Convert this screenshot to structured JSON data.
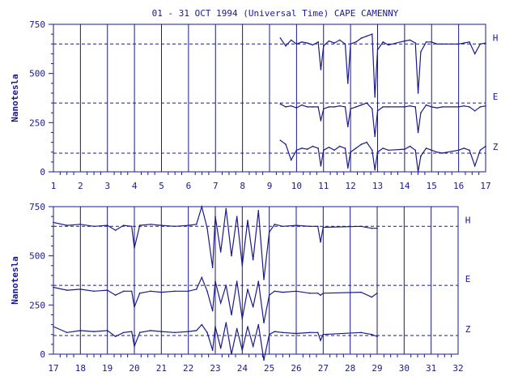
{
  "chart_data": [
    {
      "type": "line",
      "title": "01 - 31 OCT 1994 (Universal Time) CAPE CAMENNY",
      "ylabel": "Nanotesla",
      "xlim": [
        1,
        17
      ],
      "ylim": [
        0,
        750
      ],
      "y_ticks": [
        0,
        250,
        500,
        750
      ],
      "x_ticks": [
        1,
        2,
        3,
        4,
        5,
        6,
        7,
        8,
        9,
        10,
        11,
        12,
        13,
        14,
        15,
        16,
        17
      ],
      "grid": "vertical lines at each day",
      "baselines": [
        {
          "name": "H",
          "value": 650
        },
        {
          "name": "E",
          "value": 350
        },
        {
          "name": "Z",
          "value": 95
        }
      ],
      "series": [
        {
          "name": "H",
          "x": [
            9.4,
            9.6,
            9.8,
            10.0,
            10.2,
            10.4,
            10.6,
            10.8,
            10.9,
            11.0,
            11.2,
            11.4,
            11.6,
            11.8,
            11.9,
            12.0,
            12.2,
            12.4,
            12.6,
            12.8,
            12.9,
            13.0,
            13.2,
            13.4,
            14.0,
            14.2,
            14.4,
            14.5,
            14.6,
            14.8,
            15.0,
            15.2,
            15.4,
            16.0,
            16.2,
            16.4,
            16.6,
            16.8,
            17.0
          ],
          "y": [
            680,
            640,
            670,
            650,
            660,
            655,
            645,
            660,
            520,
            640,
            665,
            655,
            670,
            650,
            450,
            650,
            660,
            680,
            690,
            700,
            380,
            620,
            660,
            645,
            665,
            670,
            655,
            400,
            610,
            660,
            660,
            650,
            650,
            650,
            655,
            660,
            600,
            650,
            655
          ]
        },
        {
          "name": "E",
          "x": [
            9.4,
            9.6,
            9.8,
            10.0,
            10.2,
            10.4,
            10.6,
            10.8,
            10.9,
            11.0,
            11.2,
            11.4,
            11.6,
            11.8,
            11.9,
            12.0,
            12.2,
            12.4,
            12.6,
            12.8,
            12.9,
            13.0,
            13.2,
            13.4,
            14.0,
            14.2,
            14.4,
            14.5,
            14.6,
            14.8,
            15.0,
            15.2,
            15.4,
            16.0,
            16.2,
            16.4,
            16.6,
            16.8,
            17.0
          ],
          "y": [
            345,
            330,
            335,
            325,
            340,
            330,
            330,
            330,
            260,
            320,
            330,
            330,
            335,
            330,
            230,
            320,
            330,
            340,
            350,
            320,
            180,
            310,
            330,
            330,
            330,
            335,
            330,
            200,
            300,
            340,
            330,
            325,
            330,
            330,
            335,
            330,
            310,
            330,
            335
          ]
        },
        {
          "name": "Z",
          "x": [
            9.4,
            9.6,
            9.8,
            10.0,
            10.2,
            10.4,
            10.6,
            10.8,
            10.9,
            11.0,
            11.2,
            11.4,
            11.6,
            11.8,
            11.9,
            12.0,
            12.2,
            12.4,
            12.6,
            12.8,
            12.9,
            13.0,
            13.2,
            13.4,
            14.0,
            14.2,
            14.4,
            14.5,
            14.6,
            14.8,
            15.0,
            15.2,
            15.4,
            16.0,
            16.2,
            16.4,
            16.6,
            16.8,
            17.0
          ],
          "y": [
            160,
            140,
            60,
            110,
            120,
            115,
            130,
            120,
            30,
            110,
            125,
            110,
            130,
            120,
            20,
            100,
            120,
            140,
            150,
            110,
            10,
            100,
            120,
            110,
            115,
            130,
            110,
            0,
            80,
            120,
            110,
            100,
            95,
            110,
            120,
            110,
            30,
            110,
            130
          ]
        }
      ]
    },
    {
      "type": "line",
      "title": "",
      "ylabel": "Nanotesla",
      "xlim": [
        17,
        32
      ],
      "ylim": [
        0,
        750
      ],
      "y_ticks": [
        0,
        250,
        500,
        750
      ],
      "x_ticks": [
        17,
        18,
        19,
        20,
        21,
        22,
        23,
        24,
        25,
        26,
        27,
        28,
        29,
        30,
        31,
        32
      ],
      "grid": "vertical lines at each day",
      "baselines": [
        {
          "name": "H",
          "value": 650
        },
        {
          "name": "E",
          "value": 350
        },
        {
          "name": "Z",
          "value": 95
        }
      ],
      "series": [
        {
          "name": "H",
          "x": [
            17.0,
            17.5,
            18.0,
            18.5,
            19.0,
            19.3,
            19.6,
            19.9,
            20.0,
            20.2,
            20.6,
            21.0,
            21.5,
            22.0,
            22.3,
            22.5,
            22.7,
            22.9,
            23.0,
            23.2,
            23.4,
            23.6,
            23.8,
            24.0,
            24.2,
            24.4,
            24.6,
            24.8,
            25.0,
            25.2,
            25.5,
            26.0,
            26.5,
            26.8,
            26.9,
            27.0,
            28.4,
            28.8,
            29.0
          ],
          "y": [
            670,
            655,
            660,
            650,
            655,
            630,
            655,
            650,
            540,
            655,
            660,
            655,
            650,
            655,
            660,
            750,
            640,
            440,
            700,
            520,
            740,
            500,
            700,
            450,
            680,
            480,
            730,
            380,
            620,
            660,
            650,
            655,
            650,
            650,
            570,
            645,
            650,
            640,
            640
          ]
        },
        {
          "name": "E",
          "x": [
            17.0,
            17.5,
            18.0,
            18.5,
            19.0,
            19.3,
            19.6,
            19.9,
            20.0,
            20.2,
            20.6,
            21.0,
            21.5,
            22.0,
            22.3,
            22.5,
            22.7,
            22.9,
            23.0,
            23.2,
            23.4,
            23.6,
            23.8,
            24.0,
            24.2,
            24.4,
            24.6,
            24.8,
            25.0,
            25.2,
            25.5,
            26.0,
            26.5,
            26.8,
            26.9,
            27.0,
            28.4,
            28.8,
            29.0
          ],
          "y": [
            340,
            325,
            330,
            320,
            325,
            300,
            320,
            320,
            240,
            310,
            320,
            315,
            320,
            320,
            330,
            390,
            320,
            220,
            370,
            260,
            350,
            200,
            370,
            180,
            330,
            240,
            370,
            160,
            300,
            320,
            315,
            320,
            310,
            310,
            300,
            310,
            315,
            290,
            310
          ]
        },
        {
          "name": "Z",
          "x": [
            17.0,
            17.5,
            18.0,
            18.5,
            19.0,
            19.3,
            19.6,
            19.9,
            20.0,
            20.2,
            20.6,
            21.0,
            21.5,
            22.0,
            22.3,
            22.5,
            22.7,
            22.9,
            23.0,
            23.2,
            23.4,
            23.6,
            23.8,
            24.0,
            24.2,
            24.4,
            24.6,
            24.8,
            25.0,
            25.2,
            25.5,
            26.0,
            26.5,
            26.8,
            26.9,
            27.0,
            28.4,
            28.8,
            29.0
          ],
          "y": [
            140,
            110,
            120,
            115,
            120,
            90,
            110,
            115,
            40,
            110,
            120,
            115,
            110,
            115,
            120,
            150,
            110,
            20,
            140,
            30,
            160,
            0,
            130,
            20,
            140,
            40,
            150,
            -30,
            100,
            115,
            110,
            105,
            110,
            110,
            70,
            100,
            110,
            100,
            90
          ]
        }
      ]
    }
  ]
}
